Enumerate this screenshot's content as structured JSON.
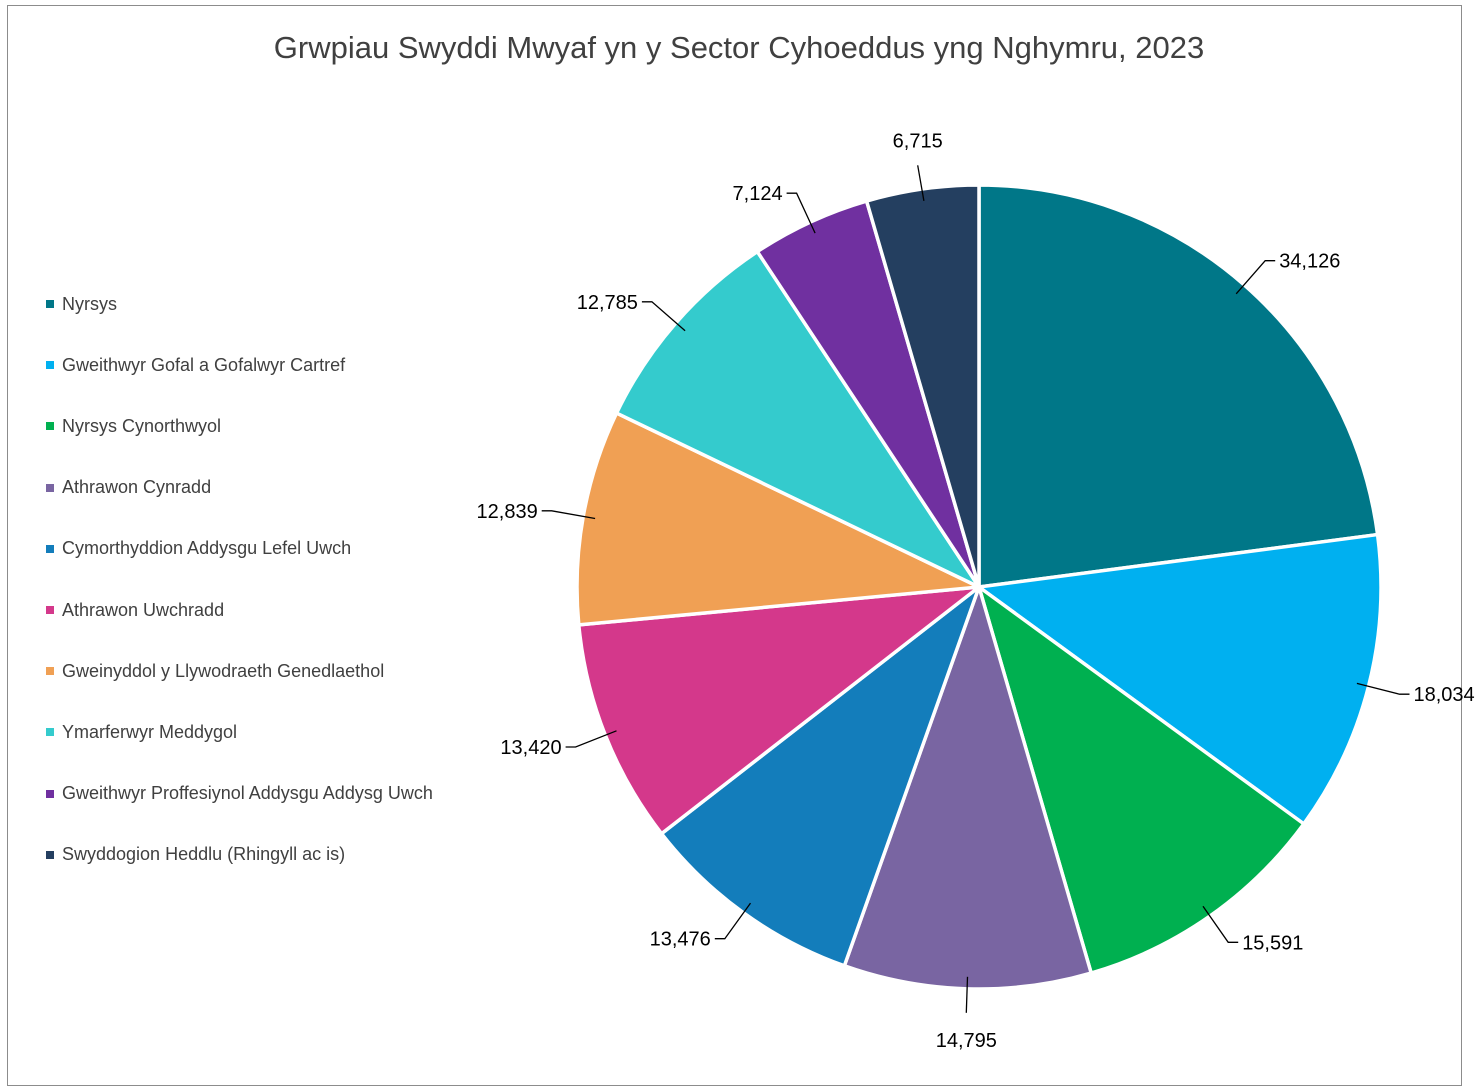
{
  "chart_data": {
    "type": "pie",
    "title": "Grwpiau Swyddi Mwyaf yn y Sector Cyhoeddus yng Nghymru, 2023",
    "legend_position": "left",
    "categories": [
      "Nyrsys",
      "Gweithwyr Gofal a Gofalwyr Cartref",
      "Nyrsys Cynorthwyol",
      "Athrawon Cynradd",
      "Cymorthyddion Addysgu Lefel Uwch",
      "Athrawon Uwchradd",
      "Gweinyddol y Llywodraeth Genedlaethol",
      "Ymarferwyr Meddygol",
      "Gweithwyr Proffesiynol Addysgu Addysg Uwch",
      "Swyddogion Heddlu (Rhingyll ac is)"
    ],
    "values": [
      34126,
      18034,
      15591,
      14795,
      13476,
      13420,
      12839,
      12785,
      7124,
      6715
    ],
    "data_labels": [
      "34,126",
      "18,034",
      "15,591",
      "14,795",
      "13,476",
      "13,420",
      "12,839",
      "12,785",
      "7,124",
      "6,715"
    ],
    "colors": [
      "#007788",
      "#00b0f0",
      "#00b050",
      "#7965a2",
      "#137dbb",
      "#d4388b",
      "#f0a054",
      "#34cbcd",
      "#7030a0",
      "#243f60"
    ]
  }
}
